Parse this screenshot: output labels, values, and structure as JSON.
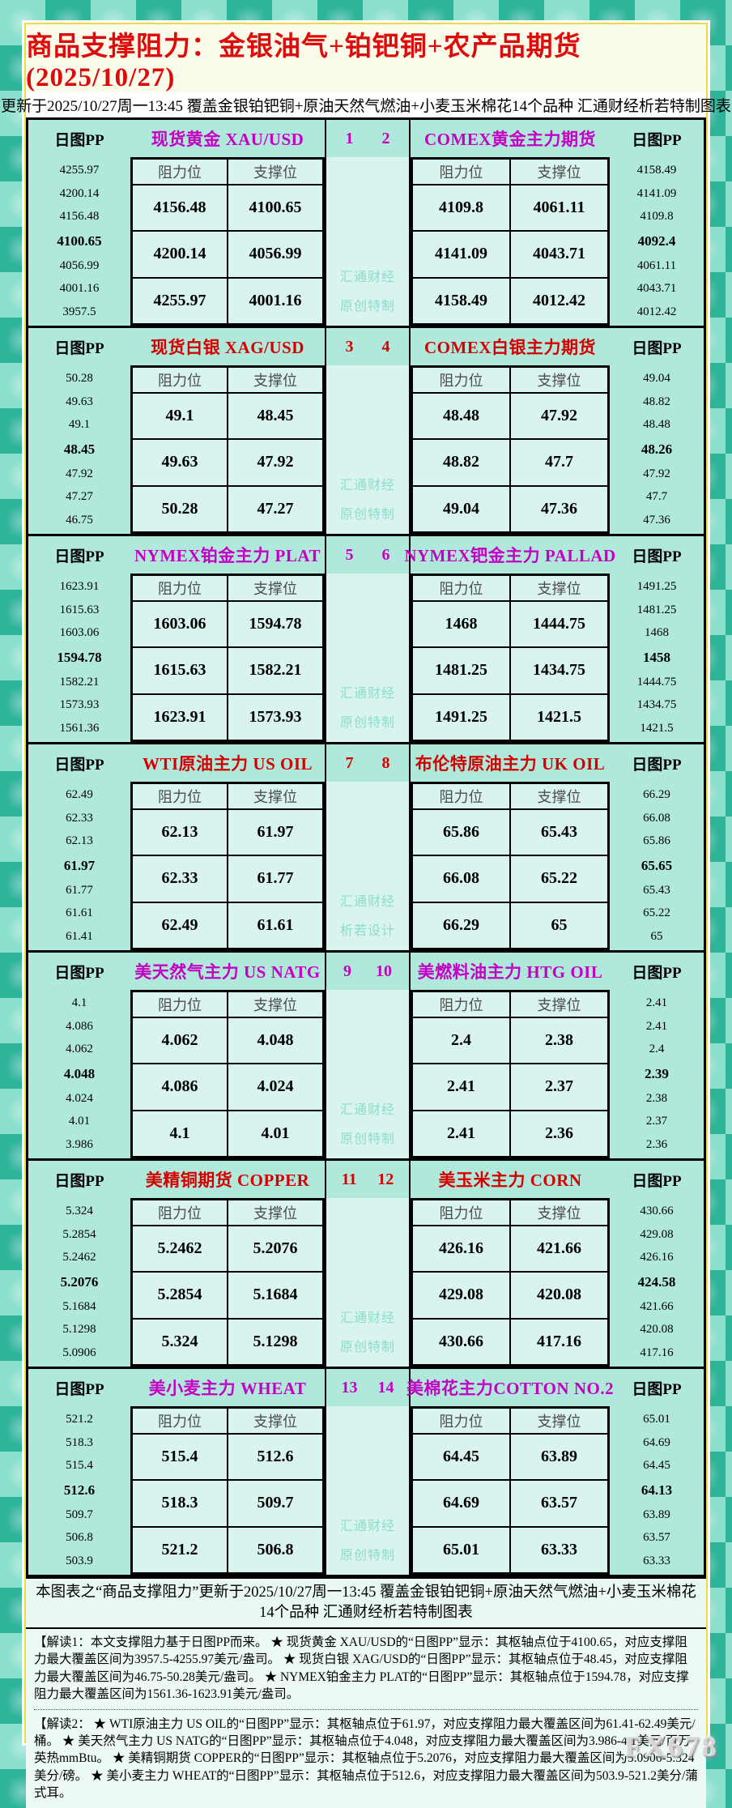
{
  "title": "商品支撑阻力：金银油气+铂钯铜+农产品期货(2025/10/27)",
  "subtitle": "更新于2025/10/27周一13:45 覆盖金银铂钯铜+原油天然气燃油+小麦玉米棉花14个品种 汇通财经析若特制图表",
  "labels": {
    "pp": "日图PP",
    "resistance": "阻力位",
    "support": "支撑位"
  },
  "watermark": {
    "line1": "汇通财经"
  },
  "accent_colors": {
    "magenta": "#c400c4",
    "red": "#d40000"
  },
  "sections": [
    {
      "accent": "#c400c4",
      "nums": [
        "1",
        "2"
      ],
      "watermark_line2": "原创特制",
      "left": {
        "title": "现货黄金 XAU/USD",
        "pp": [
          "4255.97",
          "4200.14",
          "4156.48",
          "4100.65",
          "4056.99",
          "4001.16",
          "3957.5"
        ],
        "pivot_index": 3,
        "rows": [
          [
            "4156.48",
            "4100.65"
          ],
          [
            "4200.14",
            "4056.99"
          ],
          [
            "4255.97",
            "4001.16"
          ]
        ]
      },
      "right": {
        "title": "COMEX黄金主力期货",
        "pp": [
          "4158.49",
          "4141.09",
          "4109.8",
          "4092.4",
          "4061.11",
          "4043.71",
          "4012.42"
        ],
        "pivot_index": 3,
        "rows": [
          [
            "4109.8",
            "4061.11"
          ],
          [
            "4141.09",
            "4043.71"
          ],
          [
            "4158.49",
            "4012.42"
          ]
        ]
      }
    },
    {
      "accent": "#d40000",
      "nums": [
        "3",
        "4"
      ],
      "watermark_line2": "原创特制",
      "left": {
        "title": "现货白银 XAG/USD",
        "pp": [
          "50.28",
          "49.63",
          "49.1",
          "48.45",
          "47.92",
          "47.27",
          "46.75"
        ],
        "pivot_index": 3,
        "rows": [
          [
            "49.1",
            "48.45"
          ],
          [
            "49.63",
            "47.92"
          ],
          [
            "50.28",
            "47.27"
          ]
        ]
      },
      "right": {
        "title": "COMEX白银主力期货",
        "pp": [
          "49.04",
          "48.82",
          "48.48",
          "48.26",
          "47.92",
          "47.7",
          "47.36"
        ],
        "pivot_index": 3,
        "rows": [
          [
            "48.48",
            "47.92"
          ],
          [
            "48.82",
            "47.7"
          ],
          [
            "49.04",
            "47.36"
          ]
        ]
      }
    },
    {
      "accent": "#c400c4",
      "nums": [
        "5",
        "6"
      ],
      "watermark_line2": "原创特制",
      "left": {
        "title": "NYMEX铂金主力 PLAT",
        "pp": [
          "1623.91",
          "1615.63",
          "1603.06",
          "1594.78",
          "1582.21",
          "1573.93",
          "1561.36"
        ],
        "pivot_index": 3,
        "rows": [
          [
            "1603.06",
            "1594.78"
          ],
          [
            "1615.63",
            "1582.21"
          ],
          [
            "1623.91",
            "1573.93"
          ]
        ]
      },
      "right": {
        "title": "NYMEX钯金主力 PALLAD",
        "pp": [
          "1491.25",
          "1481.25",
          "1468",
          "1458",
          "1444.75",
          "1434.75",
          "1421.5"
        ],
        "pivot_index": 3,
        "rows": [
          [
            "1468",
            "1444.75"
          ],
          [
            "1481.25",
            "1434.75"
          ],
          [
            "1491.25",
            "1421.5"
          ]
        ]
      }
    },
    {
      "accent": "#d40000",
      "nums": [
        "7",
        "8"
      ],
      "watermark_line2": "析若设计",
      "left": {
        "title": "WTI原油主力 US OIL",
        "pp": [
          "62.49",
          "62.33",
          "62.13",
          "61.97",
          "61.77",
          "61.61",
          "61.41"
        ],
        "pivot_index": 3,
        "rows": [
          [
            "62.13",
            "61.97"
          ],
          [
            "62.33",
            "61.77"
          ],
          [
            "62.49",
            "61.61"
          ]
        ]
      },
      "right": {
        "title": "布伦特原油主力 UK OIL",
        "pp": [
          "66.29",
          "66.08",
          "65.86",
          "65.65",
          "65.43",
          "65.22",
          "65"
        ],
        "pivot_index": 3,
        "rows": [
          [
            "65.86",
            "65.43"
          ],
          [
            "66.08",
            "65.22"
          ],
          [
            "66.29",
            "65"
          ]
        ]
      }
    },
    {
      "accent": "#c400c4",
      "nums": [
        "9",
        "10"
      ],
      "watermark_line2": "原创特制",
      "left": {
        "title": "美天然气主力 US NATG",
        "pp": [
          "4.1",
          "4.086",
          "4.062",
          "4.048",
          "4.024",
          "4.01",
          "3.986"
        ],
        "pivot_index": 3,
        "rows": [
          [
            "4.062",
            "4.048"
          ],
          [
            "4.086",
            "4.024"
          ],
          [
            "4.1",
            "4.01"
          ]
        ]
      },
      "right": {
        "title": "美燃料油主力 HTG OIL",
        "pp": [
          "2.41",
          "2.41",
          "2.4",
          "2.39",
          "2.38",
          "2.37",
          "2.36"
        ],
        "pivot_index": 3,
        "rows": [
          [
            "2.4",
            "2.38"
          ],
          [
            "2.41",
            "2.37"
          ],
          [
            "2.41",
            "2.36"
          ]
        ]
      }
    },
    {
      "accent": "#d40000",
      "nums": [
        "11",
        "12"
      ],
      "watermark_line2": "原创特制",
      "left": {
        "title": "美精铜期货 COPPER",
        "pp": [
          "5.324",
          "5.2854",
          "5.2462",
          "5.2076",
          "5.1684",
          "5.1298",
          "5.0906"
        ],
        "pivot_index": 3,
        "rows": [
          [
            "5.2462",
            "5.2076"
          ],
          [
            "5.2854",
            "5.1684"
          ],
          [
            "5.324",
            "5.1298"
          ]
        ]
      },
      "right": {
        "title": "美玉米主力 CORN",
        "pp": [
          "430.66",
          "429.08",
          "426.16",
          "424.58",
          "421.66",
          "420.08",
          "417.16"
        ],
        "pivot_index": 3,
        "rows": [
          [
            "426.16",
            "421.66"
          ],
          [
            "429.08",
            "420.08"
          ],
          [
            "430.66",
            "417.16"
          ]
        ]
      }
    },
    {
      "accent": "#c400c4",
      "nums": [
        "13",
        "14"
      ],
      "watermark_line2": "原创特制",
      "left": {
        "title": "美小麦主力 WHEAT",
        "pp": [
          "521.2",
          "518.3",
          "515.4",
          "512.6",
          "509.7",
          "506.8",
          "503.9"
        ],
        "pivot_index": 3,
        "rows": [
          [
            "515.4",
            "512.6"
          ],
          [
            "518.3",
            "509.7"
          ],
          [
            "521.2",
            "506.8"
          ]
        ]
      },
      "right": {
        "title": "美棉花主力COTTON NO.2",
        "pp": [
          "65.01",
          "64.69",
          "64.45",
          "64.13",
          "63.89",
          "63.57",
          "63.33"
        ],
        "pivot_index": 3,
        "rows": [
          [
            "64.45",
            "63.89"
          ],
          [
            "64.69",
            "63.57"
          ],
          [
            "65.01",
            "63.33"
          ]
        ]
      }
    }
  ],
  "footer_note": "本图表之“商品支撑阻力”更新于2025/10/27周一13:45 覆盖金银铂钯铜+原油天然气燃油+小麦玉米棉花14个品种 汇通财经析若特制图表",
  "jiedu1": "【解读1：本文支撑阻力基于日图PP而来。 ★ 现货黄金 XAU/USD的“日图PP”显示：其枢轴点位于4100.65，对应支撑阻力最大覆盖区间为3957.5-4255.97美元/盎司。 ★ 现货白银 XAG/USD的“日图PP”显示：其枢轴点位于48.45，对应支撑阻力最大覆盖区间为46.75-50.28美元/盎司。 ★ NYMEX铂金主力 PLAT的“日图PP”显示：其枢轴点位于1594.78，对应支撑阻力最大覆盖区间为1561.36-1623.91美元/盎司。",
  "jiedu2": "【解读2： ★ WTI原油主力 US OIL的“日图PP”显示：其枢轴点位于61.97，对应支撑阻力最大覆盖区间为61.41-62.49美元/桶。 ★ 美天然气主力 US NATG的“日图PP”显示：其枢轴点位于4.048，对应支撑阻力最大覆盖区间为3.986-4.1美元/百万英热mmBtu。 ★ 美精铜期货 COPPER的“日图PP”显示：其枢轴点位于5.2076，对应支撑阻力最大覆盖区间为5.0906-5.324美分/磅。 ★ 美小麦主力 WHEAT的“日图PP”显示：其枢轴点位于512.6，对应支撑阻力最大覆盖区间为503.9-521.2美分/蒲式耳。",
  "brand_watermark": "FX678"
}
